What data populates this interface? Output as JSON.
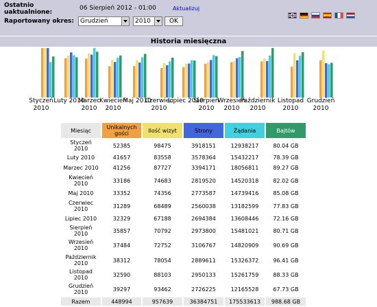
{
  "header": {
    "last_updated_label": "Ostatnio uaktualnione:",
    "last_updated_value": "06 Sierpień 2012 - 01:00",
    "refresh_link": "Aktualizuj",
    "period_label": "Raportowany okres:",
    "month_selected": "Grudzień",
    "year_selected": "2010",
    "ok_label": "OK"
  },
  "languages": [
    {
      "icon": "flag-gb-icon"
    },
    {
      "icon": "flag-de-icon"
    },
    {
      "icon": "flag-ru-icon"
    },
    {
      "icon": "flag-es-icon"
    },
    {
      "icon": "flag-fr-icon"
    },
    {
      "icon": "flag-nl-icon"
    }
  ],
  "colors": {
    "header_bg": "#ccccdd",
    "visitors": "#f0a040",
    "visits": "#f0e070",
    "pages": "#4466dd",
    "hits": "#40d0e0",
    "bandwidth": "#339966"
  },
  "section_title": "Historia miesięczna",
  "chart_data": {
    "type": "bar",
    "categories": [
      "Styczeń 2010",
      "Luty 2010",
      "Marzec 2010",
      "Kwiecień 2010",
      "Maj 2010",
      "Czerwiec 2010",
      "Lipiec 2010",
      "Sierpień 2010",
      "Wrzesień 2010",
      "Październik 2010",
      "Listopad 2010",
      "Grudzień 2010"
    ],
    "series": [
      {
        "name": "Unikalnych gości",
        "values": [
          52385,
          41657,
          41256,
          33186,
          33352,
          31289,
          32329,
          35857,
          37484,
          38312,
          32590,
          39297
        ]
      },
      {
        "name": "Ilość wizyt",
        "values": [
          98475,
          83558,
          87727,
          74683,
          74356,
          68489,
          67188,
          70792,
          72752,
          78054,
          88103,
          93462
        ]
      },
      {
        "name": "Strony",
        "values": [
          3918151,
          3578364,
          3394171,
          2819520,
          2773587,
          2560038,
          2694384,
          2973800,
          3106767,
          2889611,
          2950133,
          2726225
        ]
      },
      {
        "name": "Żądania",
        "values": [
          12938217,
          15432217,
          18056811,
          14520318,
          14739416,
          13182599,
          13608446,
          15481021,
          14820909,
          15326372,
          15261759,
          12165528
        ]
      },
      {
        "name": "Bajtów",
        "values": [
          80.04,
          78.39,
          89.27,
          82.02,
          85.08,
          77.83,
          72.16,
          80.71,
          90.69,
          96.41,
          88.33,
          67.73
        ]
      }
    ],
    "xlabel": "",
    "ylabel": "",
    "legend": "none",
    "grid": false
  },
  "table": {
    "headers": [
      "Miesiąc",
      "Unikalnych gości",
      "Ilość wizyt",
      "Strony",
      "Żądania",
      "Bajtów"
    ],
    "rows": [
      [
        "Styczeń 2010",
        "52385",
        "98475",
        "3918151",
        "12938217",
        "80.04 GB"
      ],
      [
        "Luty 2010",
        "41657",
        "83558",
        "3578364",
        "15432217",
        "78.39 GB"
      ],
      [
        "Marzec 2010",
        "41256",
        "87727",
        "3394171",
        "18056811",
        "89.27 GB"
      ],
      [
        "Kwiecień 2010",
        "33186",
        "74683",
        "2819520",
        "14520318",
        "82.02 GB"
      ],
      [
        "Maj 2010",
        "33352",
        "74356",
        "2773587",
        "14739416",
        "85.08 GB"
      ],
      [
        "Czerwiec 2010",
        "31289",
        "68489",
        "2560038",
        "13182599",
        "77.83 GB"
      ],
      [
        "Lipiec 2010",
        "32329",
        "67188",
        "2694384",
        "13608446",
        "72.16 GB"
      ],
      [
        "Sierpień 2010",
        "35857",
        "70792",
        "2973800",
        "15481021",
        "80.71 GB"
      ],
      [
        "Wrzesień 2010",
        "37484",
        "72752",
        "3106767",
        "14820909",
        "90.69 GB"
      ],
      [
        "Październik 2010",
        "38312",
        "78054",
        "2889611",
        "15326372",
        "96.41 GB"
      ],
      [
        "Listopad 2010",
        "32590",
        "88103",
        "2950133",
        "15261759",
        "88.33 GB"
      ],
      [
        "Grudzień 2010",
        "39297",
        "93462",
        "2726225",
        "12165528",
        "67.73 GB"
      ]
    ],
    "total": [
      "Razem",
      "448994",
      "957639",
      "36384751",
      "175533613",
      "988.68 GB"
    ]
  }
}
